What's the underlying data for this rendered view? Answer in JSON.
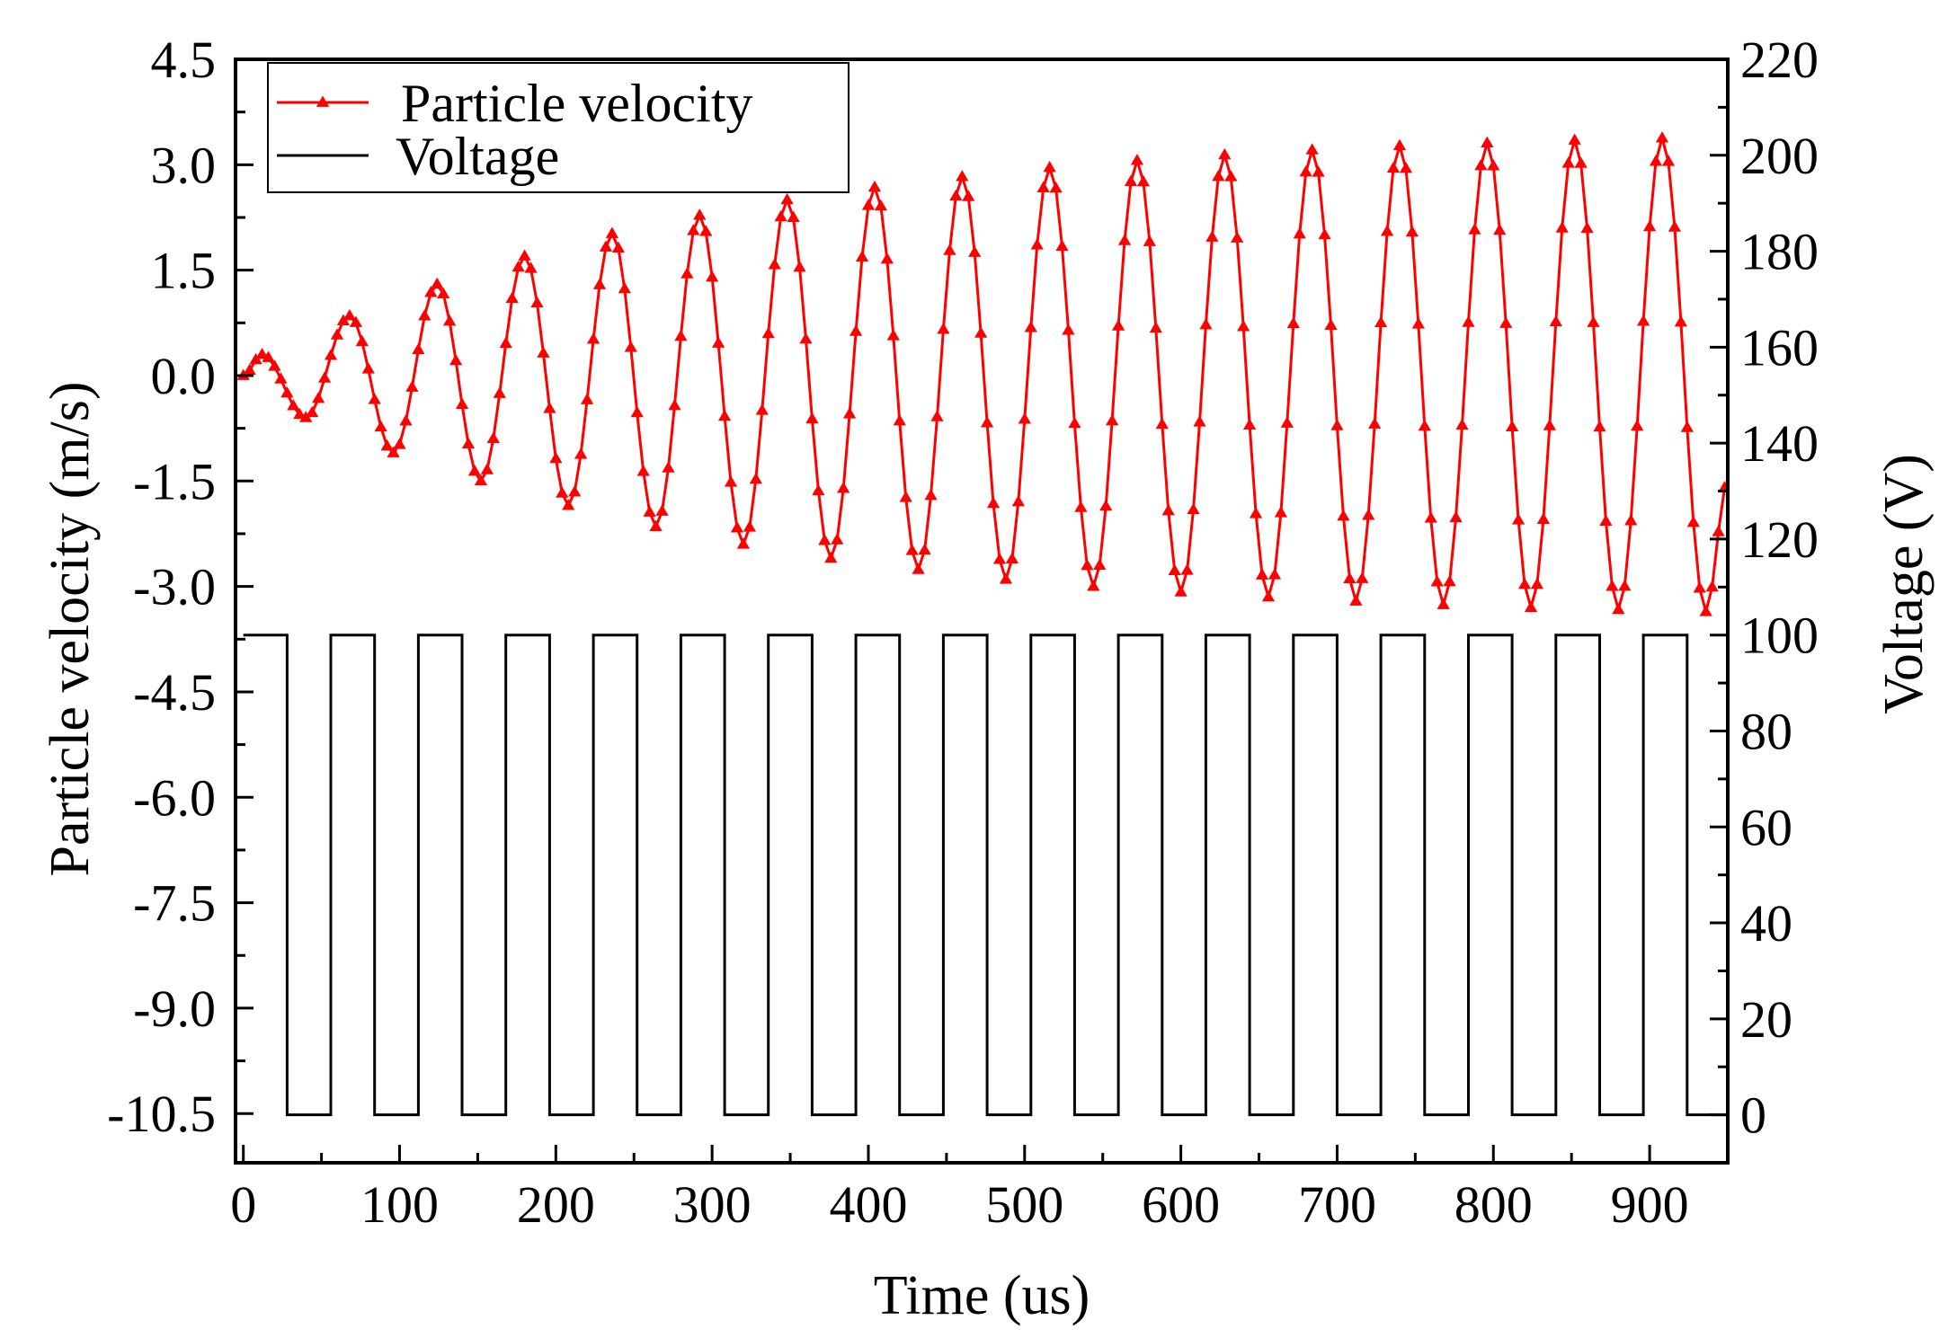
{
  "chart_data": {
    "type": "line",
    "title": "",
    "xlabel": "Time (us)",
    "ylabel_left": "Particle velocity (m/s)",
    "ylabel_right": "Voltage (V)",
    "xlim": [
      -5,
      950
    ],
    "ylim_left": [
      -11.2,
      4.5
    ],
    "ylim_right": [
      -10,
      220
    ],
    "x_ticks": [
      0,
      100,
      200,
      300,
      400,
      500,
      600,
      700,
      800,
      900
    ],
    "x_tick_labels": [
      "0",
      "100",
      "200",
      "300",
      "400",
      "500",
      "600",
      "700",
      "800",
      "900"
    ],
    "y_left_ticks": [
      4.5,
      3.0,
      1.5,
      0.0,
      -1.5,
      -3.0,
      -4.5,
      -6.0,
      -7.5,
      -9.0,
      -10.5
    ],
    "y_left_tick_labels": [
      "4.5",
      "3.0",
      "1.5",
      "0.0",
      "-1.5",
      "-3.0",
      "-4.5",
      "-6.0",
      "-7.5",
      "-9.0",
      "-10.5"
    ],
    "y_right_ticks": [
      220,
      200,
      180,
      160,
      140,
      120,
      100,
      80,
      60,
      40,
      20,
      0
    ],
    "y_right_tick_labels": [
      "220",
      "200",
      "180",
      "160",
      "140",
      "120",
      "100",
      "80",
      "60",
      "40",
      "20",
      "0"
    ],
    "legend": {
      "placement": "top-left",
      "entries": [
        "Particle velocity",
        "Voltage"
      ]
    },
    "series": [
      {
        "name": "Particle velocity",
        "axis": "left",
        "color": "#ff0000",
        "marker": "triangle",
        "sample_step_us": 4,
        "period_us": 56,
        "peaks": [
          {
            "t": 12,
            "v": 0.3
          },
          {
            "t": 68,
            "v": 0.85
          },
          {
            "t": 124,
            "v": 1.3
          },
          {
            "t": 180,
            "v": 1.7
          },
          {
            "t": 236,
            "v": 2.02
          },
          {
            "t": 292,
            "v": 2.28
          },
          {
            "t": 348,
            "v": 2.5
          },
          {
            "t": 404,
            "v": 2.68
          },
          {
            "t": 460,
            "v": 2.83
          },
          {
            "t": 516,
            "v": 2.96
          },
          {
            "t": 572,
            "v": 3.06
          },
          {
            "t": 628,
            "v": 3.14
          },
          {
            "t": 684,
            "v": 3.21
          },
          {
            "t": 740,
            "v": 3.27
          },
          {
            "t": 796,
            "v": 3.31
          },
          {
            "t": 852,
            "v": 3.35
          },
          {
            "t": 908,
            "v": 3.38
          }
        ],
        "troughs": [
          {
            "t": 40,
            "v": -0.6
          },
          {
            "t": 96,
            "v": -1.1
          },
          {
            "t": 152,
            "v": -1.5
          },
          {
            "t": 208,
            "v": -1.85
          },
          {
            "t": 264,
            "v": -2.15
          },
          {
            "t": 320,
            "v": -2.4
          },
          {
            "t": 376,
            "v": -2.6
          },
          {
            "t": 432,
            "v": -2.76
          },
          {
            "t": 488,
            "v": -2.9
          },
          {
            "t": 544,
            "v": -3.0
          },
          {
            "t": 600,
            "v": -3.08
          },
          {
            "t": 656,
            "v": -3.15
          },
          {
            "t": 712,
            "v": -3.21
          },
          {
            "t": 768,
            "v": -3.26
          },
          {
            "t": 824,
            "v": -3.3
          },
          {
            "t": 880,
            "v": -3.33
          },
          {
            "t": 936,
            "v": -3.36
          }
        ],
        "end_value": {
          "t": 950,
          "v": -1.5
        }
      },
      {
        "name": "Voltage",
        "axis": "right",
        "color": "#000000",
        "type": "step",
        "high_v": 100,
        "low_v": 0,
        "period_us": 56,
        "high_duration_us": 28,
        "low_duration_us": 28,
        "start_time_us": 0,
        "start_level": "high"
      }
    ]
  }
}
